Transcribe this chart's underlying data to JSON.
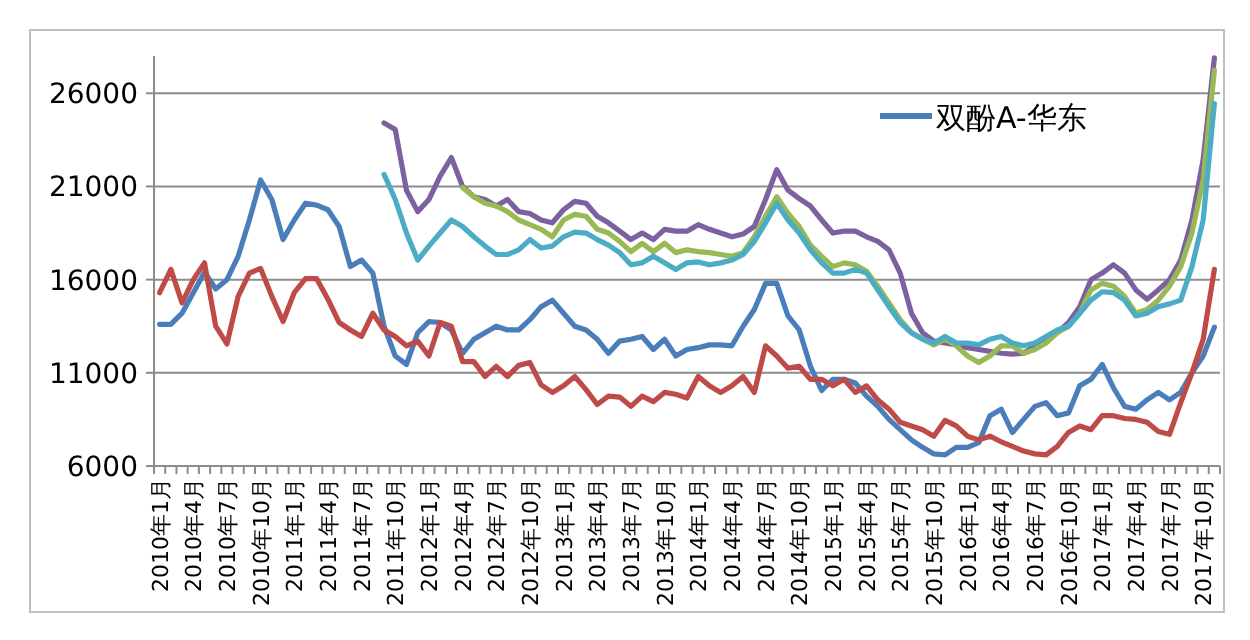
{
  "chart_data": {
    "type": "line",
    "categories": [
      "2010年1月",
      null,
      null,
      "2010年4月",
      null,
      null,
      "2010年7月",
      null,
      null,
      "2010年10月",
      null,
      null,
      "2011年1月",
      null,
      null,
      "2011年4月",
      null,
      null,
      "2011年7月",
      null,
      null,
      "2011年10月",
      null,
      null,
      "2012年1月",
      null,
      null,
      "2012年4月",
      null,
      null,
      "2012年7月",
      null,
      null,
      "2012年10月",
      null,
      null,
      "2013年1月",
      null,
      null,
      "2013年4月",
      null,
      null,
      "2013年7月",
      null,
      null,
      "2013年10月",
      null,
      null,
      "2014年1月",
      null,
      null,
      "2014年4月",
      null,
      null,
      "2014年7月",
      null,
      null,
      "2014年10月",
      null,
      null,
      "2015年1月",
      null,
      null,
      "2015年4月",
      null,
      null,
      "2015年7月",
      null,
      null,
      "2015年10月",
      null,
      null,
      "2016年1月",
      null,
      null,
      "2016年4月",
      null,
      null,
      "2016年7月",
      null,
      null,
      "2016年10月",
      null,
      null,
      "2017年1月",
      null,
      null,
      "2017年4月",
      null,
      null,
      "2017年7月",
      null,
      null,
      "2017年10月",
      null
    ],
    "series": [
      {
        "name": "双酚A-华东",
        "color": "#4a7ebb",
        "values": [
          13600,
          13600,
          14200,
          15300,
          16400,
          15500,
          16000,
          17250,
          19200,
          21350,
          20300,
          18150,
          19200,
          20100,
          20000,
          19750,
          18850,
          16700,
          17050,
          16350,
          13500,
          11900,
          11450,
          13150,
          13750,
          13700,
          13300,
          12050,
          12800,
          13150,
          13500,
          13300,
          13300,
          13850,
          14550,
          14900,
          14200,
          13500,
          13300,
          12800,
          12050,
          12700,
          12800,
          12950,
          12250,
          12800,
          11900,
          12250,
          12350,
          12500,
          12500,
          12450,
          13500,
          14400,
          15800,
          15800,
          14050,
          13300,
          11350,
          10050,
          10650,
          10650,
          10450,
          9750,
          9200,
          8500,
          7950,
          7400,
          7000,
          6650,
          6600,
          7000,
          7000,
          7250,
          8700,
          9050,
          7800,
          8500,
          9200,
          9400,
          8700,
          8850,
          10300,
          10650,
          11450,
          10200,
          9200,
          9050,
          9550,
          9950,
          9550,
          9950,
          11000,
          11900,
          13450
        ]
      },
      {
        "color": "#be4b48",
        "values": [
          15300,
          16550,
          14750,
          16000,
          16900,
          13500,
          12550,
          15100,
          16350,
          16600,
          15100,
          13750,
          15300,
          16050,
          16050,
          14950,
          13700,
          13300,
          12950,
          14200,
          13300,
          12950,
          12450,
          12700,
          11900,
          13700,
          13500,
          11600,
          11600,
          10800,
          11350,
          10800,
          11400,
          11550,
          10350,
          9950,
          10300,
          10800,
          10100,
          9300,
          9750,
          9700,
          9200,
          9750,
          9450,
          9950,
          9850,
          9650,
          10800,
          10300,
          9950,
          10300,
          10800,
          9950,
          12450,
          11900,
          11250,
          11350,
          10650,
          10650,
          10300,
          10650,
          9950,
          10300,
          9550,
          9050,
          8350,
          8150,
          7950,
          7600,
          8450,
          8150,
          7600,
          7400,
          7600,
          7300,
          7050,
          6800,
          6650,
          6600,
          7050,
          7800,
          8150,
          7950,
          8700,
          8700,
          8550,
          8500,
          8350,
          7850,
          7700,
          9400,
          11000,
          12800,
          16550
        ]
      },
      {
        "color": "#7d60a0",
        "values": [
          null,
          null,
          null,
          null,
          null,
          null,
          null,
          null,
          null,
          null,
          null,
          null,
          null,
          null,
          null,
          null,
          null,
          null,
          null,
          null,
          24400,
          24050,
          20800,
          19650,
          20300,
          21550,
          22550,
          21000,
          20450,
          20300,
          19950,
          20300,
          19650,
          19550,
          19200,
          19050,
          19750,
          20200,
          20100,
          19400,
          19050,
          18600,
          18150,
          18500,
          18150,
          18700,
          18600,
          18600,
          18950,
          18700,
          18500,
          18300,
          18450,
          18850,
          20300,
          21900,
          20800,
          20350,
          19950,
          19200,
          18500,
          18600,
          18600,
          18300,
          18050,
          17600,
          16350,
          14200,
          13150,
          12700,
          12600,
          12500,
          12350,
          12250,
          12150,
          12050,
          12000,
          12050,
          12450,
          12800,
          13150,
          13700,
          14550,
          16000,
          16350,
          16800,
          16350,
          15450,
          14950,
          15450,
          16000,
          17050,
          19200,
          22450,
          27900
        ]
      },
      {
        "color": "#98b954",
        "values": [
          null,
          null,
          null,
          null,
          null,
          null,
          null,
          null,
          null,
          null,
          null,
          null,
          null,
          null,
          null,
          null,
          null,
          null,
          null,
          null,
          null,
          null,
          null,
          null,
          null,
          null,
          null,
          20950,
          20450,
          20100,
          19950,
          19650,
          19200,
          18950,
          18700,
          18300,
          19200,
          19500,
          19400,
          18700,
          18500,
          18050,
          17500,
          17950,
          17500,
          17950,
          17450,
          17600,
          17500,
          17450,
          17350,
          17250,
          17450,
          18300,
          19400,
          20450,
          19550,
          18850,
          17850,
          17250,
          16700,
          16900,
          16800,
          16450,
          15650,
          14750,
          13850,
          13150,
          12800,
          12500,
          12800,
          12450,
          11900,
          11550,
          11900,
          12450,
          12450,
          12050,
          12250,
          12600,
          13150,
          13500,
          14200,
          15450,
          15800,
          15650,
          15100,
          14200,
          14400,
          14900,
          15650,
          16700,
          18500,
          21350,
          27250
        ]
      },
      {
        "color": "#4bacc6",
        "values": [
          null,
          null,
          null,
          null,
          null,
          null,
          null,
          null,
          null,
          null,
          null,
          null,
          null,
          null,
          null,
          null,
          null,
          null,
          null,
          null,
          21650,
          20300,
          18500,
          17050,
          17800,
          18500,
          19200,
          18850,
          18300,
          17800,
          17350,
          17350,
          17600,
          18150,
          17700,
          17800,
          18300,
          18550,
          18500,
          18150,
          17850,
          17450,
          16800,
          16900,
          17250,
          16900,
          16550,
          16900,
          16950,
          16800,
          16900,
          17050,
          17350,
          18050,
          19050,
          20100,
          19200,
          18500,
          17600,
          16900,
          16350,
          16350,
          16550,
          16350,
          15450,
          14550,
          13700,
          13150,
          12800,
          12600,
          12950,
          12600,
          12600,
          12500,
          12800,
          12950,
          12600,
          12450,
          12600,
          12950,
          13300,
          13500,
          14200,
          14900,
          15350,
          15300,
          14900,
          14050,
          14200,
          14550,
          14700,
          14900,
          16700,
          19200,
          25450
        ]
      }
    ],
    "ylim": [
      6000,
      28000
    ],
    "yticks": [
      6000,
      11000,
      16000,
      21000,
      26000
    ],
    "grid": "y",
    "legend": "top right"
  }
}
